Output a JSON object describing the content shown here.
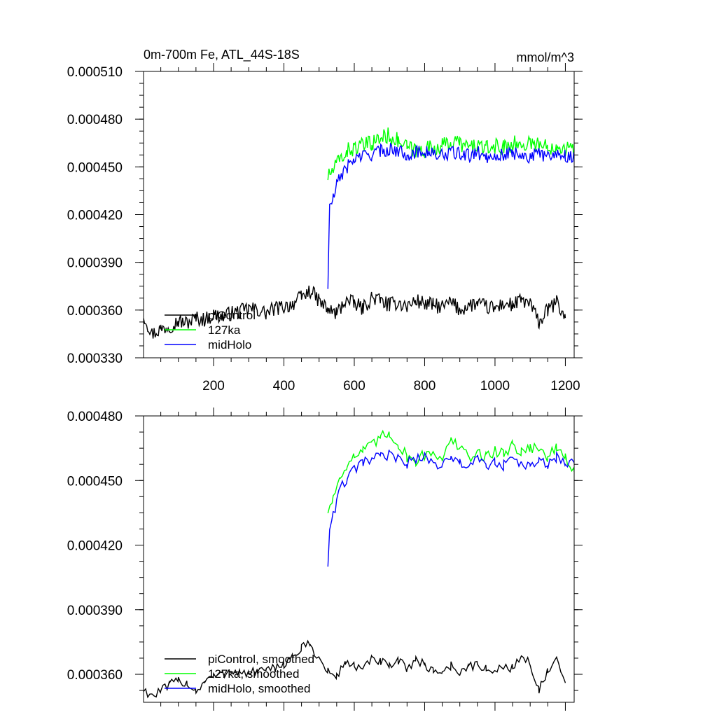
{
  "chart_data": [
    {
      "type": "line",
      "title": "0m-700m Fe, ATL_44S-18S",
      "units": "mmol/m^3",
      "xlim": [
        1,
        1225
      ],
      "ylim": [
        0.00033,
        0.00051
      ],
      "x_ticks": [
        200,
        400,
        600,
        800,
        1000,
        1200
      ],
      "x_tick_labels": [
        "200",
        "400",
        "600",
        "800",
        "1000",
        "1200"
      ],
      "y_ticks": [
        0.00033,
        0.00036,
        0.00039,
        0.00042,
        0.00045,
        0.00048,
        0.00051
      ],
      "y_tick_labels": [
        "0.000330",
        "0.000360",
        "0.000390",
        "0.000420",
        "0.000450",
        "0.000480",
        "0.000510"
      ],
      "legend_position": "bottom-left",
      "series": [
        {
          "name": "piControl",
          "color": "#000000",
          "x": [
            1,
            25,
            50,
            75,
            100,
            125,
            150,
            175,
            200,
            225,
            250,
            275,
            300,
            325,
            350,
            375,
            400,
            425,
            450,
            475,
            500,
            525,
            550,
            575,
            600,
            625,
            650,
            675,
            700,
            725,
            750,
            775,
            800,
            825,
            850,
            875,
            900,
            925,
            950,
            975,
            1000,
            1025,
            1050,
            1075,
            1100,
            1125,
            1150,
            1175,
            1200
          ],
          "y": [
            0.000357,
            0.000345,
            0.000348,
            0.00035,
            0.000353,
            0.000352,
            0.000355,
            0.000354,
            0.000357,
            0.000356,
            0.000358,
            0.000359,
            0.000361,
            0.00036,
            0.000358,
            0.000361,
            0.000362,
            0.000364,
            0.000368,
            0.000372,
            0.000366,
            0.00036,
            0.000358,
            0.000366,
            0.000364,
            0.000361,
            0.000368,
            0.000366,
            0.000363,
            0.000365,
            0.000362,
            0.000366,
            0.000364,
            0.000363,
            0.000362,
            0.000365,
            0.00036,
            0.000363,
            0.000364,
            0.000362,
            0.000361,
            0.000364,
            0.000363,
            0.000366,
            0.000364,
            0.000352,
            0.00036,
            0.000365,
            0.000355
          ]
        },
        {
          "name": "127ka",
          "color": "#00ff00",
          "x": [
            525,
            540,
            560,
            580,
            600,
            625,
            650,
            675,
            700,
            725,
            750,
            775,
            800,
            825,
            850,
            875,
            900,
            925,
            950,
            975,
            1000,
            1025,
            1050,
            1075,
            1100,
            1125,
            1150,
            1175,
            1200,
            1225
          ],
          "y": [
            0.000444,
            0.000448,
            0.000455,
            0.00046,
            0.000462,
            0.000463,
            0.000465,
            0.000468,
            0.00047,
            0.000466,
            0.000462,
            0.00046,
            0.000461,
            0.000462,
            0.000463,
            0.000466,
            0.000465,
            0.000462,
            0.000464,
            0.000461,
            0.000463,
            0.000462,
            0.000465,
            0.000463,
            0.000466,
            0.000464,
            0.000462,
            0.000464,
            0.000462,
            0.00046
          ]
        },
        {
          "name": "midHolo",
          "color": "#0000ff",
          "x": [
            525,
            530,
            540,
            550,
            560,
            580,
            600,
            625,
            650,
            675,
            700,
            725,
            750,
            775,
            800,
            825,
            850,
            875,
            900,
            925,
            950,
            975,
            1000,
            1025,
            1050,
            1075,
            1100,
            1125,
            1150,
            1175,
            1200,
            1225
          ],
          "y": [
            0.000375,
            0.000425,
            0.00043,
            0.000438,
            0.000444,
            0.00045,
            0.000455,
            0.000457,
            0.000458,
            0.00046,
            0.000461,
            0.00046,
            0.000458,
            0.000459,
            0.00046,
            0.000458,
            0.000457,
            0.000459,
            0.000458,
            0.000457,
            0.000459,
            0.000456,
            0.000458,
            0.000457,
            0.000459,
            0.000458,
            0.000456,
            0.000458,
            0.000457,
            0.000459,
            0.000457,
            0.000456
          ]
        }
      ]
    },
    {
      "type": "line",
      "title": "",
      "xlim": [
        1,
        1225
      ],
      "ylim": [
        0.000347,
        0.00048
      ],
      "x_ticks": [
        200,
        400,
        600,
        800,
        1000,
        1200
      ],
      "y_ticks": [
        0.00036,
        0.00039,
        0.00042,
        0.00045,
        0.00048
      ],
      "y_tick_labels": [
        "0.000360",
        "0.000390",
        "0.000420",
        "0.000450",
        "0.000480"
      ],
      "legend_position": "bottom-left",
      "series": [
        {
          "name": "piControl, smoothed",
          "color": "#000000",
          "x": [
            1,
            25,
            50,
            75,
            100,
            125,
            150,
            175,
            200,
            225,
            250,
            275,
            300,
            325,
            350,
            375,
            400,
            425,
            450,
            475,
            500,
            525,
            550,
            575,
            600,
            625,
            650,
            675,
            700,
            725,
            750,
            775,
            800,
            825,
            850,
            875,
            900,
            925,
            950,
            975,
            1000,
            1025,
            1050,
            1075,
            1100,
            1125,
            1150,
            1175,
            1200
          ],
          "y": [
            0.000353,
            0.00035,
            0.000352,
            0.000355,
            0.000357,
            0.000356,
            0.000352,
            0.000357,
            0.000359,
            0.00036,
            0.000362,
            0.000361,
            0.00036,
            0.000362,
            0.000361,
            0.000363,
            0.000365,
            0.000368,
            0.000372,
            0.000374,
            0.000367,
            0.000361,
            0.000359,
            0.000366,
            0.000364,
            0.000362,
            0.000367,
            0.000366,
            0.000363,
            0.000366,
            0.000363,
            0.000367,
            0.000364,
            0.000362,
            0.000361,
            0.000364,
            0.000361,
            0.000363,
            0.000365,
            0.000362,
            0.000361,
            0.000364,
            0.000363,
            0.000368,
            0.000365,
            0.000353,
            0.000361,
            0.000366,
            0.000356
          ]
        },
        {
          "name": "127ka, smoothed",
          "color": "#00ff00",
          "x": [
            525,
            540,
            560,
            580,
            600,
            625,
            650,
            675,
            700,
            725,
            750,
            775,
            800,
            825,
            850,
            875,
            900,
            925,
            950,
            975,
            1000,
            1025,
            1050,
            1075,
            1100,
            1125,
            1150,
            1175,
            1200,
            1225
          ],
          "y": [
            0.000436,
            0.000442,
            0.000452,
            0.000458,
            0.000461,
            0.000464,
            0.000466,
            0.00047,
            0.000472,
            0.000467,
            0.000461,
            0.000459,
            0.000462,
            0.000463,
            0.000461,
            0.000468,
            0.000466,
            0.00046,
            0.000463,
            0.000461,
            0.000464,
            0.000462,
            0.000467,
            0.000463,
            0.000466,
            0.000464,
            0.000461,
            0.000465,
            0.000461,
            0.000454
          ]
        },
        {
          "name": "midHolo, smoothed",
          "color": "#0000ff",
          "x": [
            525,
            530,
            540,
            550,
            560,
            580,
            600,
            625,
            650,
            675,
            700,
            725,
            750,
            775,
            800,
            825,
            850,
            875,
            900,
            925,
            950,
            975,
            1000,
            1025,
            1050,
            1075,
            1100,
            1125,
            1150,
            1175,
            1200,
            1225
          ],
          "y": [
            0.000411,
            0.000428,
            0.000434,
            0.00044,
            0.000446,
            0.000451,
            0.000455,
            0.000458,
            0.00046,
            0.000461,
            0.000462,
            0.00046,
            0.000458,
            0.00046,
            0.000461,
            0.000458,
            0.000457,
            0.00046,
            0.000458,
            0.000457,
            0.00046,
            0.000456,
            0.000459,
            0.000457,
            0.00046,
            0.000458,
            0.000456,
            0.000459,
            0.000457,
            0.000461,
            0.000457,
            0.000458
          ]
        }
      ]
    }
  ]
}
